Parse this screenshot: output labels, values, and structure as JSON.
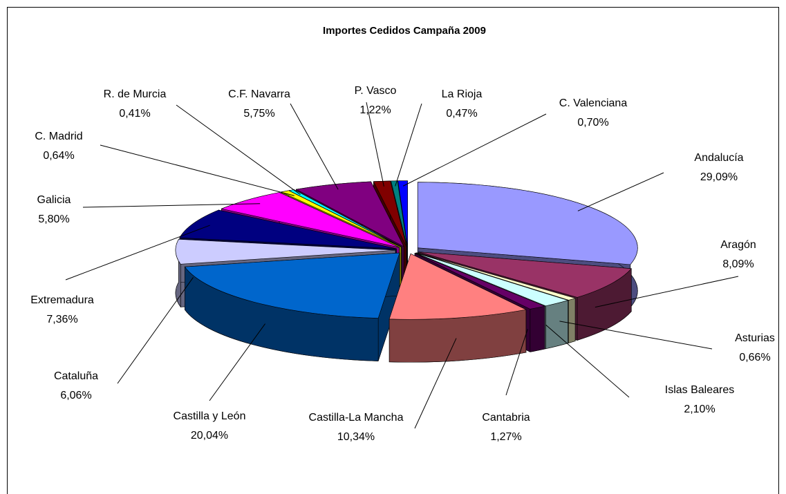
{
  "chart_data": {
    "type": "pie",
    "title": "Importes Cedidos Campaña 2009",
    "categories": [
      "Andalucía",
      "Aragón",
      "Asturias",
      "Islas Baleares",
      "Cantabria",
      "Castilla-La Mancha",
      "Castilla y León",
      "Cataluña",
      "Extremadura",
      "Galicia",
      "C. Madrid",
      "R. de Murcia",
      "C.F. Navarra",
      "P. Vasco",
      "La Rioja",
      "C. Valenciana"
    ],
    "values": [
      29.09,
      8.09,
      0.66,
      2.1,
      1.27,
      10.34,
      20.04,
      6.06,
      7.36,
      5.8,
      0.64,
      0.41,
      5.75,
      1.22,
      0.47,
      0.7
    ],
    "value_labels": [
      "29,09%",
      "8,09%",
      "0,66%",
      "2,10%",
      "1,27%",
      "10,34%",
      "20,04%",
      "6,06%",
      "7,36%",
      "5,80%",
      "0,64%",
      "0,41%",
      "5,75%",
      "1,22%",
      "0,47%",
      "0,70%"
    ],
    "colors": [
      "#9999ff",
      "#993366",
      "#ffffcc",
      "#ccffff",
      "#660066",
      "#ff8080",
      "#0066cc",
      "#ccccff",
      "#000080",
      "#ff00ff",
      "#ffff00",
      "#00ffff",
      "#800080",
      "#800000",
      "#008080",
      "#0000ff"
    ]
  }
}
